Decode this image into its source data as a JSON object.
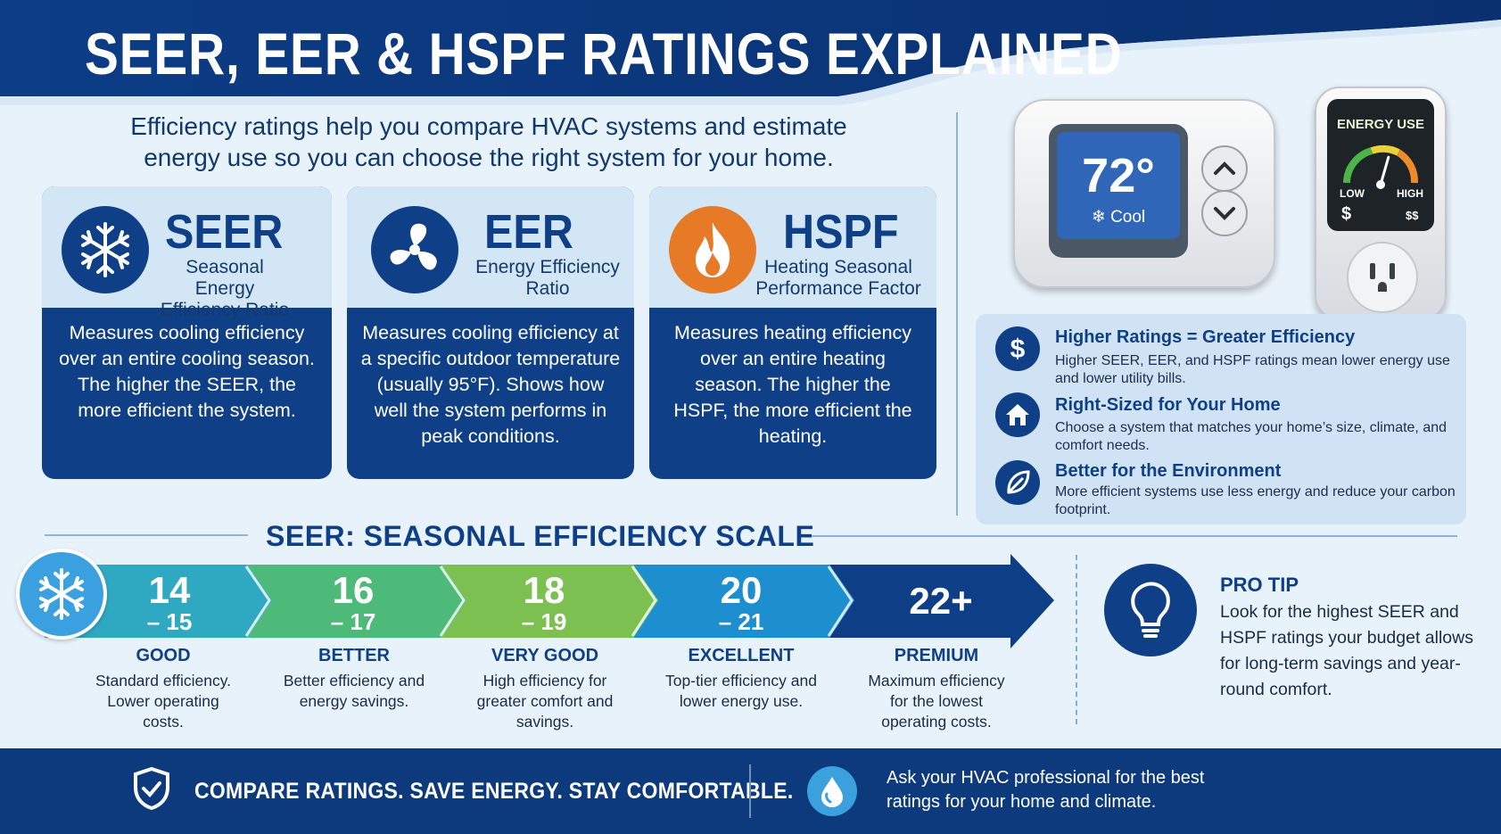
{
  "header": {
    "title": "SEER, EER & HSPF RATINGS EXPLAINED",
    "intro": "Efficiency ratings help you compare HVAC systems and estimate energy use so you can choose the right system for your home."
  },
  "cards": [
    {
      "acronym": "SEER",
      "name": "Seasonal Energy Efficiency Ratio",
      "icon": "snowflake-icon",
      "description": "Measures cooling efficiency over an entire cooling season. The higher the SEER, the more efficient the system."
    },
    {
      "acronym": "EER",
      "name": "Energy Efficiency Ratio",
      "icon": "fan-icon",
      "description": "Measures cooling efficiency at a specific outdoor temperature (usually 95°F). Shows how well the system performs in peak conditions."
    },
    {
      "acronym": "HSPF",
      "name": "Heating Seasonal Performance Factor",
      "icon": "flame-icon",
      "description": "Measures heating efficiency over an entire heating season. The higher the HSPF, the more efficient the heating."
    }
  ],
  "thermostat": {
    "temperature": "72°",
    "mode": "Cool",
    "mode_icon": "snowflake-icon"
  },
  "energy_meter": {
    "title": "ENERGY USE",
    "low_label": "LOW",
    "high_label": "HIGH",
    "low_symbol": "$",
    "high_symbol": "$$",
    "needle_level": 0.6
  },
  "benefits": [
    {
      "icon": "dollar-icon",
      "title": "Higher Ratings = Greater Efficiency",
      "text": "Higher SEER, EER, and HSPF ratings mean lower energy use and lower utility bills."
    },
    {
      "icon": "home-icon",
      "title": "Right-Sized for Your Home",
      "text": "Choose a system that matches your home’s size, climate, and comfort needs."
    },
    {
      "icon": "leaf-icon",
      "title": "Better for the Environment",
      "text": "More efficient systems use less energy and reduce your carbon footprint."
    }
  ],
  "scale": {
    "title": "SEER: SEASONAL EFFICIENCY SCALE",
    "tiers": [
      {
        "range_top": "14",
        "range_bottom": "– 15",
        "name": "GOOD",
        "description": "Standard efficiency. Lower operating costs.",
        "color": "#2fa9c2"
      },
      {
        "range_top": "16",
        "range_bottom": "– 17",
        "name": "BETTER",
        "description": "Better efficiency and energy savings.",
        "color": "#4dba7a"
      },
      {
        "range_top": "18",
        "range_bottom": "– 19",
        "name": "VERY GOOD",
        "description": "High efficiency for greater comfort and savings.",
        "color": "#7cc052"
      },
      {
        "range_top": "20",
        "range_bottom": "– 21",
        "name": "EXCELLENT",
        "description": "Top-tier efficiency and lower energy use.",
        "color": "#1e8fce"
      },
      {
        "range_top": "22+",
        "range_bottom": "",
        "name": "PREMIUM",
        "description": "Maximum efficiency for the lowest operating costs.",
        "color": "#0e3f86"
      }
    ]
  },
  "pro_tip": {
    "title": "PRO TIP",
    "text": "Look for the highest SEER and HSPF ratings your budget allows for long-term savings and year-round comfort."
  },
  "footer": {
    "slogan": "COMPARE RATINGS. SAVE ENERGY. STAY COMFORTABLE.",
    "note": "Ask your HVAC professional for the best ratings for your home and climate."
  },
  "colors": {
    "navy": "#0f3f86",
    "light_blue": "#d3e6f6",
    "accent_blue": "#3aa0de",
    "flame_orange": "#e67a27"
  }
}
